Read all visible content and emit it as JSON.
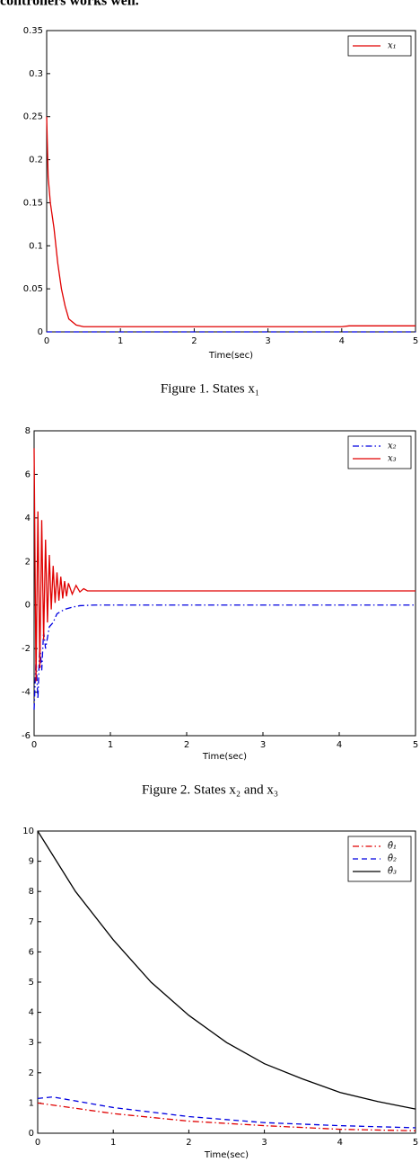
{
  "text": "controllers works well.",
  "chart_data": [
    {
      "type": "line",
      "caption": "Figure 1.     States x₁",
      "xlabel": "Time(sec)",
      "xlim": [
        0,
        5
      ],
      "xticks": [
        0,
        1,
        2,
        3,
        4,
        5
      ],
      "ylim": [
        0,
        0.35
      ],
      "yticks": [
        0,
        0.05,
        0.1,
        0.15,
        0.2,
        0.25,
        0.3,
        0.35
      ],
      "legend": "upper right",
      "series": [
        {
          "name": "x₁",
          "color": "#e00000",
          "linestyle": "solid",
          "x": [
            0,
            0.02,
            0.05,
            0.1,
            0.15,
            0.2,
            0.25,
            0.3,
            0.4,
            0.5,
            1,
            2,
            3,
            4,
            4.1,
            5
          ],
          "values": [
            0.25,
            0.18,
            0.15,
            0.12,
            0.08,
            0.05,
            0.03,
            0.015,
            0.008,
            0.006,
            0.006,
            0.006,
            0.006,
            0.006,
            0.007,
            0.007
          ]
        },
        {
          "color": "#0000e0",
          "linestyle": "dashed",
          "x": [
            0,
            5
          ],
          "values": [
            0,
            0
          ]
        }
      ]
    },
    {
      "type": "line",
      "caption": "Figure 2.     States x₂ and x₃",
      "xlabel": "Time(sec)",
      "xlim": [
        0,
        5
      ],
      "xticks": [
        0,
        1,
        2,
        3,
        4,
        5
      ],
      "ylim": [
        -6,
        8
      ],
      "yticks": [
        -6,
        -4,
        -2,
        0,
        2,
        4,
        6,
        8
      ],
      "legend": "upper right",
      "series": [
        {
          "name": "x₂",
          "color": "#0000e0",
          "linestyle": "dashdot",
          "x": [
            0,
            0.025,
            0.05,
            0.075,
            0.1,
            0.125,
            0.15,
            0.2,
            0.25,
            0.3,
            0.4,
            0.5,
            0.6,
            0.8,
            5
          ],
          "values": [
            -4.8,
            -2.5,
            -4.3,
            -1.8,
            -3.0,
            -1.2,
            -2.0,
            -1.0,
            -0.8,
            -0.4,
            -0.2,
            -0.1,
            -0.03,
            0,
            0
          ]
        },
        {
          "name": "x₃",
          "color": "#e00000",
          "linestyle": "solid",
          "x": [
            0,
            0.025,
            0.05,
            0.075,
            0.1,
            0.125,
            0.15,
            0.175,
            0.2,
            0.225,
            0.25,
            0.275,
            0.3,
            0.325,
            0.35,
            0.375,
            0.4,
            0.425,
            0.45,
            0.5,
            0.55,
            0.6,
            0.65,
            0.7,
            1,
            5
          ],
          "values": [
            7.2,
            -3.5,
            4.3,
            -2.9,
            3.9,
            -1.6,
            3.0,
            -0.8,
            2.3,
            -0.2,
            1.8,
            0.1,
            1.5,
            0.2,
            1.3,
            0.3,
            1.1,
            0.4,
            1.0,
            0.5,
            0.9,
            0.6,
            0.75,
            0.65,
            0.65,
            0.65
          ]
        }
      ]
    },
    {
      "type": "line",
      "xlabel": "Time(sec)",
      "xlim": [
        0,
        5
      ],
      "xticks": [
        0,
        1,
        2,
        3,
        4,
        5
      ],
      "ylim": [
        0,
        10
      ],
      "yticks": [
        0,
        1,
        2,
        3,
        4,
        5,
        6,
        7,
        8,
        9,
        10
      ],
      "legend": "upper right",
      "series": [
        {
          "name": "θ̂₁",
          "color": "#e00000",
          "linestyle": "dashdot",
          "x": [
            0,
            1,
            2,
            3,
            4,
            5
          ],
          "values": [
            1.0,
            0.65,
            0.4,
            0.25,
            0.13,
            0.08
          ]
        },
        {
          "name": "θ̂₂",
          "color": "#0000e0",
          "linestyle": "dashed",
          "x": [
            0,
            0.2,
            1,
            2,
            3,
            4,
            5
          ],
          "values": [
            1.15,
            1.2,
            0.85,
            0.55,
            0.35,
            0.25,
            0.18
          ]
        },
        {
          "name": "θ̂₃",
          "color": "#000000",
          "linestyle": "solid",
          "x": [
            0,
            0.5,
            1,
            1.5,
            2,
            2.5,
            3,
            3.5,
            4,
            4.5,
            5
          ],
          "values": [
            10,
            8.0,
            6.4,
            5.0,
            3.9,
            3.0,
            2.3,
            1.8,
            1.35,
            1.05,
            0.8
          ]
        }
      ]
    }
  ]
}
